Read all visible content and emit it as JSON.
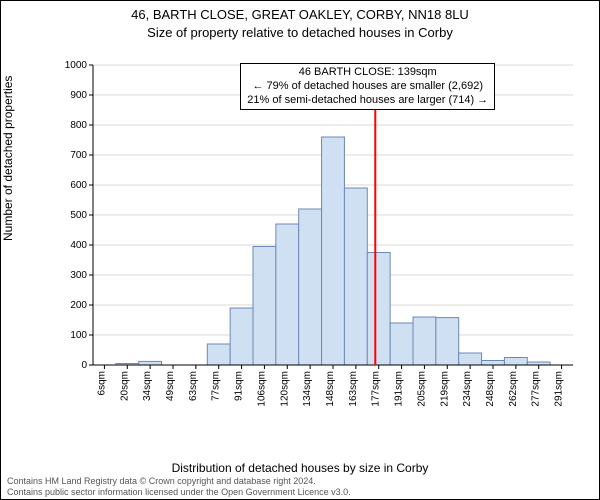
{
  "header": {
    "title1": "46, BARTH CLOSE, GREAT OAKLEY, CORBY, NN18 8LU",
    "title2": "Size of property relative to detached houses in Corby"
  },
  "annotation": {
    "line1": "46 BARTH CLOSE: 139sqm",
    "line2": "← 79% of detached houses are smaller (2,692)",
    "line3": "21% of semi-detached houses are larger (714) →"
  },
  "chart": {
    "type": "histogram",
    "ylabel": "Number of detached properties",
    "xlabel": "Distribution of detached houses by size in Corby",
    "ylim": [
      0,
      1000
    ],
    "ytick_step": 100,
    "yticks": [
      0,
      100,
      200,
      300,
      400,
      500,
      600,
      700,
      800,
      900,
      1000
    ],
    "xticks": [
      "6sqm",
      "20sqm",
      "34sqm",
      "49sqm",
      "63sqm",
      "77sqm",
      "91sqm",
      "106sqm",
      "120sqm",
      "134sqm",
      "148sqm",
      "163sqm",
      "177sqm",
      "191sqm",
      "205sqm",
      "219sqm",
      "234sqm",
      "248sqm",
      "262sqm",
      "277sqm",
      "291sqm"
    ],
    "bar_values": [
      0,
      5,
      12,
      0,
      0,
      70,
      190,
      395,
      470,
      520,
      760,
      590,
      375,
      140,
      160,
      158,
      40,
      15,
      25,
      10,
      0
    ],
    "bar_fill": "#cfe0f3",
    "bar_stroke": "#6b89b3",
    "grid_color": "#d9d9d9",
    "axis_color": "#000000",
    "background_color": "#ffffff",
    "reference_line": {
      "value_index_between": [
        12,
        13
      ],
      "color": "#ff0000",
      "width": 2
    },
    "label_fontsize": 12,
    "tick_fontsize": 10
  },
  "footer": {
    "line1": "Contains HM Land Registry data © Crown copyright and database right 2024.",
    "line2": "Contains public sector information licensed under the Open Government Licence v3.0."
  }
}
